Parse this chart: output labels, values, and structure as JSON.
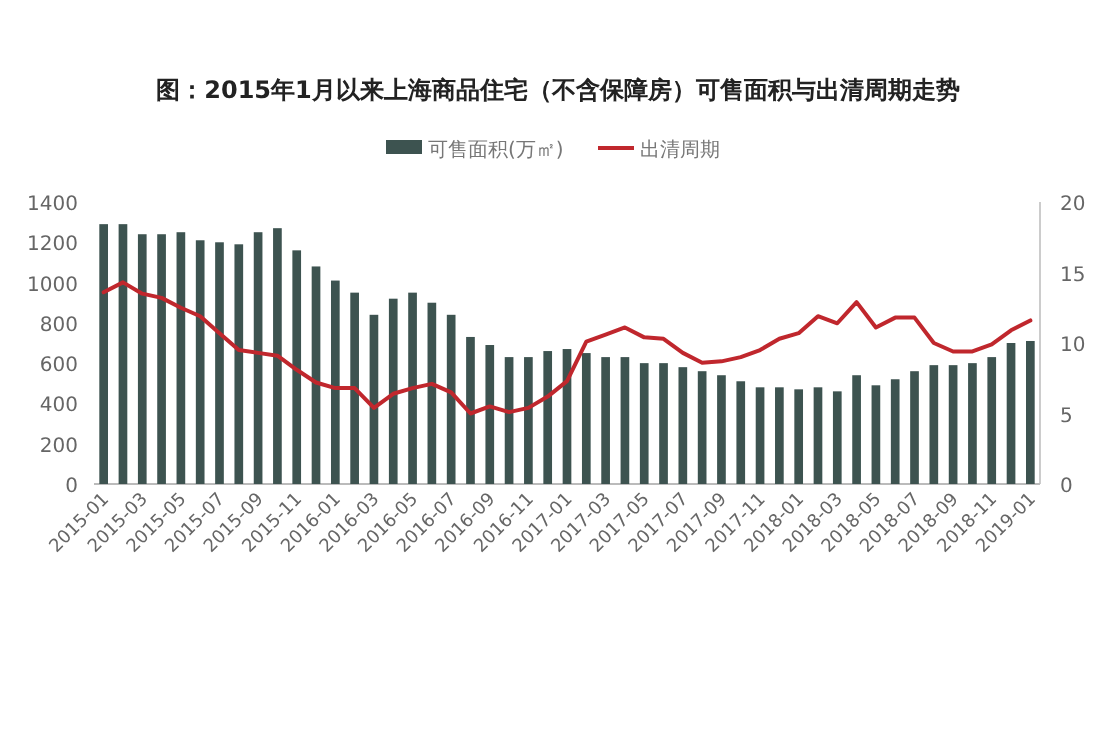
{
  "chart_data": {
    "type": "bar",
    "title": "图：2015年1月以来上海商品住宅（不含保障房）可售面积与出清周期走势",
    "categories": [
      "2015-01",
      null,
      "2015-03",
      null,
      "2015-05",
      null,
      "2015-07",
      null,
      "2015-09",
      null,
      "2015-11",
      null,
      "2016-01",
      null,
      "2016-03",
      null,
      "2016-05",
      null,
      "2016-07",
      null,
      "2016-09",
      null,
      "2016-11",
      null,
      "2017-01",
      null,
      "2017-03",
      null,
      "2017-05",
      null,
      "2017-07",
      null,
      "2017-09",
      null,
      "2017-11",
      null,
      "2018-01",
      null,
      "2018-03",
      null,
      "2018-05",
      null,
      "2018-07",
      null,
      "2018-09",
      null,
      "2018-11",
      null,
      "2019-01"
    ],
    "series": [
      {
        "name": "可售面积(万㎡)",
        "color": "#3d5350",
        "values": [
          1290,
          1290,
          1240,
          1240,
          1250,
          1210,
          1200,
          1190,
          1250,
          1270,
          1160,
          1080,
          1010,
          950,
          840,
          920,
          950,
          900,
          840,
          730,
          690,
          630,
          630,
          660,
          670,
          650,
          630,
          630,
          600,
          600,
          580,
          560,
          540,
          510,
          480,
          480,
          470,
          480,
          460,
          540,
          490,
          520,
          560,
          590,
          590,
          600,
          630,
          700,
          710
        ]
      },
      {
        "name": "出清周期",
        "type": "line",
        "axis": "y2",
        "color": "#c0272d",
        "values": [
          13.6,
          14.3,
          13.5,
          13.2,
          12.5,
          11.9,
          10.7,
          9.5,
          9.3,
          9.1,
          8.1,
          7.2,
          6.8,
          6.8,
          5.4,
          6.4,
          6.8,
          7.1,
          6.5,
          5.0,
          5.5,
          5.1,
          5.4,
          6.2,
          7.3,
          10.1,
          10.6,
          11.1,
          10.4,
          10.3,
          9.3,
          8.6,
          8.7,
          9.0,
          9.5,
          10.3,
          10.7,
          11.9,
          11.4,
          12.9,
          11.1,
          11.8,
          11.8,
          10.0,
          9.4,
          9.4,
          9.9,
          10.9,
          11.6
        ]
      }
    ],
    "ylim": [
      0,
      1400
    ],
    "yticks": [
      0,
      200,
      400,
      600,
      800,
      1000,
      1200,
      1400
    ],
    "y2lim": [
      0,
      20
    ],
    "y2ticks": [
      0,
      5,
      10,
      15,
      20
    ],
    "legend": "top",
    "grid": false
  }
}
